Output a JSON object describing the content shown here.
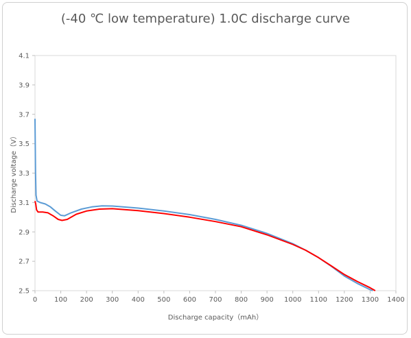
{
  "chart_data": {
    "type": "line",
    "title": "(-40 ℃ low temperature) 1.0C discharge curve",
    "xlabel": "Discharge capacity（mAh）",
    "ylabel": "Discharge voltage（V）",
    "xlim": [
      0,
      1400
    ],
    "ylim": [
      2.5,
      4.1
    ],
    "x_ticks": [
      "0",
      "100",
      "200",
      "300",
      "400",
      "500",
      "600",
      "700",
      "800",
      "900",
      "1000",
      "1100",
      "1200",
      "1300",
      "1400"
    ],
    "y_ticks": [
      "2.5",
      "2.7",
      "2.9",
      "3.1",
      "3.3",
      "3.5",
      "3.7",
      "3.9",
      "4.1"
    ],
    "grid": false,
    "series": [
      {
        "color": "#5b9bd5",
        "points": [
          [
            0,
            3.67
          ],
          [
            2,
            3.3
          ],
          [
            4,
            3.15
          ],
          [
            8,
            3.11
          ],
          [
            20,
            3.1
          ],
          [
            40,
            3.09
          ],
          [
            60,
            3.07
          ],
          [
            80,
            3.04
          ],
          [
            100,
            3.013
          ],
          [
            115,
            3.01
          ],
          [
            140,
            3.03
          ],
          [
            180,
            3.055
          ],
          [
            220,
            3.07
          ],
          [
            260,
            3.077
          ],
          [
            300,
            3.076
          ],
          [
            400,
            3.062
          ],
          [
            500,
            3.042
          ],
          [
            600,
            3.018
          ],
          [
            700,
            2.985
          ],
          [
            800,
            2.945
          ],
          [
            900,
            2.89
          ],
          [
            1000,
            2.82
          ],
          [
            1050,
            2.775
          ],
          [
            1100,
            2.725
          ],
          [
            1150,
            2.665
          ],
          [
            1200,
            2.6
          ],
          [
            1250,
            2.55
          ],
          [
            1300,
            2.507
          ],
          [
            1310,
            2.5
          ]
        ]
      },
      {
        "color": "#ff0000",
        "points": [
          [
            0,
            3.11
          ],
          [
            3,
            3.09
          ],
          [
            6,
            3.05
          ],
          [
            12,
            3.035
          ],
          [
            30,
            3.035
          ],
          [
            50,
            3.03
          ],
          [
            70,
            3.01
          ],
          [
            90,
            2.985
          ],
          [
            105,
            2.978
          ],
          [
            125,
            2.985
          ],
          [
            160,
            3.02
          ],
          [
            200,
            3.042
          ],
          [
            250,
            3.055
          ],
          [
            300,
            3.058
          ],
          [
            400,
            3.045
          ],
          [
            500,
            3.025
          ],
          [
            600,
            3.0
          ],
          [
            700,
            2.97
          ],
          [
            800,
            2.935
          ],
          [
            900,
            2.88
          ],
          [
            1000,
            2.815
          ],
          [
            1050,
            2.775
          ],
          [
            1100,
            2.725
          ],
          [
            1150,
            2.668
          ],
          [
            1200,
            2.61
          ],
          [
            1250,
            2.563
          ],
          [
            1300,
            2.52
          ],
          [
            1320,
            2.5
          ]
        ]
      }
    ]
  }
}
